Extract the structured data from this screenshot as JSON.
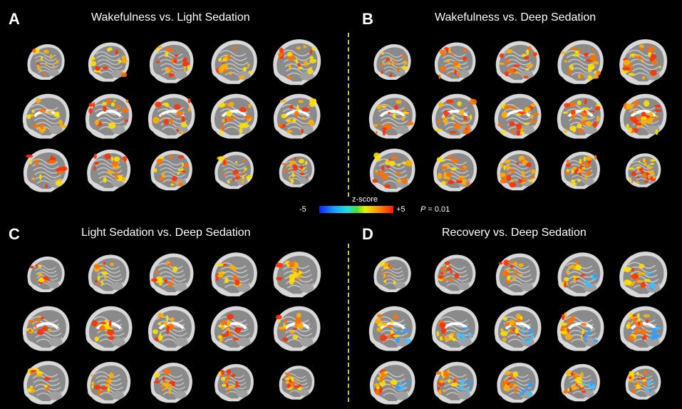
{
  "panels": [
    {
      "id": "A",
      "letter": "A",
      "title": "Wakefulness vs. Light Sedation",
      "intensity": 0.55,
      "blue": 0
    },
    {
      "id": "B",
      "letter": "B",
      "title": "Wakefulness vs. Deep Sedation",
      "intensity": 0.85,
      "blue": 0
    },
    {
      "id": "C",
      "letter": "C",
      "title": "Light Sedation vs. Deep Sedation",
      "intensity": 0.4,
      "blue": 0
    },
    {
      "id": "D",
      "letter": "D",
      "title": "Recovery vs. Deep Sedation",
      "intensity": 0.5,
      "blue": 1
    }
  ],
  "colorbar": {
    "title": "z-score",
    "min_label": "-5",
    "max_label": "+5",
    "p_label": "P",
    "p_value": " = 0.01"
  },
  "colors": {
    "background": "#000000",
    "divider": "#c8c84a",
    "hot": [
      "#ffe000",
      "#ffb000",
      "#ff7000",
      "#ff3000"
    ],
    "cold": [
      "#30a0ff",
      "#40c0ff"
    ]
  },
  "grid": {
    "rows": 3,
    "cols": 5
  }
}
